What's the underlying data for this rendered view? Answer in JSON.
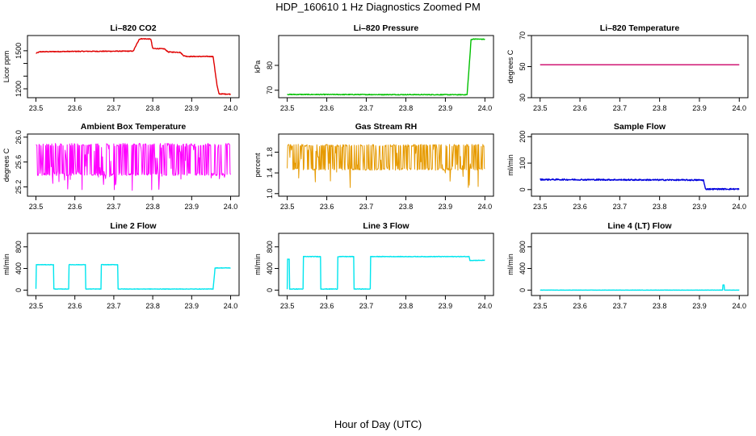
{
  "figure": {
    "title": "HDP_160610  1 Hz Diagnostics Zoomed PM",
    "xlabel": "Hour of Day (UTC)"
  },
  "chart_data": [
    {
      "type": "line",
      "title": "Li–820 CO2",
      "xlabel": "",
      "ylabel": "Licor ppm",
      "xlim": [
        23.5,
        24.0
      ],
      "xticks": [
        23.5,
        23.6,
        23.7,
        23.8,
        23.9,
        24.0
      ],
      "ylim": [
        1130,
        1620
      ],
      "yticks": [
        1200,
        1300,
        1400,
        1500
      ],
      "ytick_labels": [
        "1200",
        "",
        "",
        "1500"
      ],
      "grid": false,
      "legend": "none",
      "series": [
        {
          "color": "#e00000",
          "noise": 3,
          "x": [
            23.5,
            23.51,
            23.6,
            23.75,
            23.765,
            23.77,
            23.795,
            23.8,
            23.83,
            23.84,
            23.87,
            23.88,
            23.89,
            23.955,
            23.965,
            23.97,
            24.0
          ],
          "y": [
            1480,
            1492,
            1495,
            1497,
            1590,
            1595,
            1592,
            1518,
            1515,
            1490,
            1488,
            1460,
            1455,
            1455,
            1230,
            1160,
            1158
          ]
        }
      ]
    },
    {
      "type": "line",
      "title": "Li–820 Pressure",
      "xlabel": "",
      "ylabel": "kPa",
      "xlim": [
        23.5,
        24.0
      ],
      "xticks": [
        23.5,
        23.6,
        23.7,
        23.8,
        23.9,
        24.0
      ],
      "ylim": [
        67,
        92
      ],
      "yticks": [
        70,
        80
      ],
      "ytick_labels": [
        "70",
        "80"
      ],
      "grid": false,
      "legend": "none",
      "series": [
        {
          "color": "#00c000",
          "noise": 0.15,
          "x": [
            23.5,
            23.95,
            23.955,
            23.965,
            23.97,
            24.0
          ],
          "y": [
            68.3,
            68.2,
            68.2,
            90.3,
            90.6,
            90.5
          ]
        }
      ]
    },
    {
      "type": "line",
      "title": "Li–820 Temperature",
      "xlabel": "",
      "ylabel": "degrees C",
      "xlim": [
        23.5,
        24.0
      ],
      "xticks": [
        23.5,
        23.6,
        23.7,
        23.8,
        23.9,
        24.0
      ],
      "ylim": [
        30,
        70
      ],
      "yticks": [
        30,
        50,
        70
      ],
      "ytick_labels": [
        "30",
        "50",
        "70"
      ],
      "grid": false,
      "legend": "none",
      "series": [
        {
          "color": "#cc0066",
          "noise": 0,
          "x": [
            23.5,
            24.0
          ],
          "y": [
            51.2,
            51.2
          ]
        }
      ]
    },
    {
      "type": "line",
      "title": "Ambient Box Temperature",
      "xlabel": "",
      "ylabel": "degrees C",
      "xlim": [
        23.5,
        24.0
      ],
      "xticks": [
        23.5,
        23.6,
        23.7,
        23.8,
        23.9,
        24.0
      ],
      "ylim": [
        25.05,
        26.05
      ],
      "yticks": [
        25.2,
        25.6,
        26.0
      ],
      "ytick_labels": [
        "25.2",
        "25.6",
        "26.0"
      ],
      "grid": false,
      "legend": "none",
      "series": [
        {
          "color": "#ff00ff",
          "noise": 0,
          "dense": {
            "low": 25.38,
            "high": 25.9,
            "dips": 25.12
          },
          "x": [
            23.5,
            24.0
          ],
          "y": [
            25.62,
            25.62
          ]
        }
      ]
    },
    {
      "type": "line",
      "title": "Gas Stream RH",
      "xlabel": "",
      "ylabel": "percent",
      "xlim": [
        23.5,
        24.0
      ],
      "xticks": [
        23.5,
        23.6,
        23.7,
        23.8,
        23.9,
        24.0
      ],
      "ylim": [
        0.95,
        2.15
      ],
      "yticks": [
        1.0,
        1.4,
        1.8
      ],
      "ytick_labels": [
        "1.0",
        "1.4",
        "1.8"
      ],
      "grid": false,
      "legend": "none",
      "series": [
        {
          "color": "#e69a00",
          "noise": 0,
          "dense": {
            "low": 1.45,
            "high": 1.95,
            "dips": 1.05
          },
          "x": [
            23.5,
            24.0
          ],
          "y": [
            1.7,
            1.7
          ]
        }
      ]
    },
    {
      "type": "line",
      "title": "Sample Flow",
      "xlabel": "",
      "ylabel": "ml/min",
      "xlim": [
        23.5,
        24.0
      ],
      "xticks": [
        23.5,
        23.6,
        23.7,
        23.8,
        23.9,
        24.0
      ],
      "ylim": [
        -25,
        210
      ],
      "yticks": [
        0,
        100,
        200
      ],
      "ytick_labels": [
        "0",
        "100",
        "200"
      ],
      "grid": false,
      "legend": "none",
      "series": [
        {
          "color": "#0000dd",
          "noise": 2.5,
          "x": [
            23.5,
            23.91,
            23.915,
            24.0
          ],
          "y": [
            38,
            36,
            2,
            2
          ]
        }
      ]
    },
    {
      "type": "line",
      "title": "Line 2 Flow",
      "xlabel": "",
      "ylabel": "ml/min",
      "xlim": [
        23.5,
        24.0
      ],
      "xticks": [
        23.5,
        23.6,
        23.7,
        23.8,
        23.9,
        24.0
      ],
      "ylim": [
        -100,
        1050
      ],
      "yticks": [
        0,
        400,
        800
      ],
      "ytick_labels": [
        "0",
        "400",
        "800"
      ],
      "grid": false,
      "legend": "none",
      "series": [
        {
          "color": "#00e5ee",
          "noise": 4,
          "x": [
            23.5,
            23.501,
            23.545,
            23.546,
            23.584,
            23.585,
            23.627,
            23.628,
            23.667,
            23.668,
            23.71,
            23.711,
            23.75,
            23.77,
            23.955,
            23.96,
            24.0
          ],
          "y": [
            20,
            470,
            470,
            20,
            20,
            470,
            470,
            20,
            20,
            470,
            470,
            20,
            20,
            20,
            20,
            410,
            410
          ]
        }
      ]
    },
    {
      "type": "line",
      "title": "Line 3 Flow",
      "xlabel": "",
      "ylabel": "ml/min",
      "xlim": [
        23.5,
        24.0
      ],
      "xticks": [
        23.5,
        23.6,
        23.7,
        23.8,
        23.9,
        24.0
      ],
      "ylim": [
        -100,
        1050
      ],
      "yticks": [
        0,
        400,
        800
      ],
      "ytick_labels": [
        "0",
        "400",
        "800"
      ],
      "grid": false,
      "legend": "none",
      "series": [
        {
          "color": "#00e5ee",
          "noise": 5,
          "x": [
            23.5,
            23.501,
            23.505,
            23.506,
            23.54,
            23.541,
            23.584,
            23.585,
            23.627,
            23.628,
            23.668,
            23.669,
            23.71,
            23.711,
            23.96,
            23.962,
            24.0
          ],
          "y": [
            20,
            570,
            570,
            20,
            20,
            620,
            620,
            20,
            20,
            620,
            620,
            20,
            20,
            620,
            620,
            550,
            550
          ]
        }
      ]
    },
    {
      "type": "line",
      "title": "Line 4 (LT) Flow",
      "xlabel": "",
      "ylabel": "ml/min",
      "xlim": [
        23.5,
        24.0
      ],
      "xticks": [
        23.5,
        23.6,
        23.7,
        23.8,
        23.9,
        24.0
      ],
      "ylim": [
        -100,
        1050
      ],
      "yticks": [
        0,
        400,
        800
      ],
      "ytick_labels": [
        "0",
        "400",
        "800"
      ],
      "grid": false,
      "legend": "none",
      "series": [
        {
          "color": "#00e5ee",
          "noise": 1.5,
          "x": [
            23.5,
            23.958,
            23.959,
            23.962,
            23.963,
            24.0
          ],
          "y": [
            0,
            0,
            95,
            95,
            0,
            0
          ]
        }
      ]
    }
  ]
}
